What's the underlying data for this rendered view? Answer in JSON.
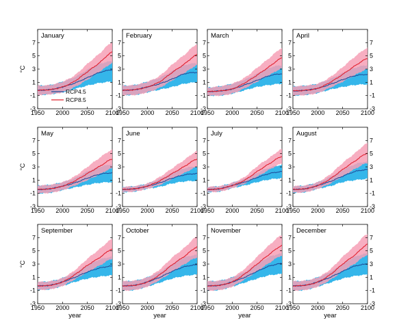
{
  "units_label": "°C",
  "xlabel": "year",
  "legend": [
    {
      "name": "RCP4.5",
      "color": "#1f4e9c"
    },
    {
      "name": "RCP8.5",
      "color": "#e0202f"
    }
  ],
  "colors": {
    "rcp45_line": "#1f4e9c",
    "rcp45_band": "#35b6ea",
    "rcp85_line": "#e0202f",
    "rcp85_band": "#f6a0b6"
  },
  "chart_data": [
    {
      "type": "line",
      "title": "January",
      "xlim": [
        1950,
        2100
      ],
      "ylim": [
        -3,
        9
      ],
      "xticks": [
        1950,
        2000,
        2050,
        2100
      ],
      "yticks": [
        -3,
        -1,
        1,
        3,
        5,
        7
      ],
      "x": [
        1950,
        1975,
        2000,
        2025,
        2050,
        2075,
        2100
      ],
      "series": [
        {
          "name": "RCP4.5",
          "values": [
            -0.2,
            -0.1,
            0.3,
            0.9,
            1.7,
            2.5,
            2.9
          ],
          "lower": [
            -0.9,
            -0.8,
            -0.5,
            0.0,
            0.5,
            0.9,
            1.1
          ],
          "upper": [
            0.5,
            0.6,
            1.1,
            1.8,
            2.9,
            3.8,
            4.2
          ]
        },
        {
          "name": "RCP8.5",
          "values": [
            -0.2,
            -0.1,
            0.3,
            1.2,
            2.6,
            4.0,
            5.6
          ],
          "lower": [
            -0.9,
            -0.8,
            -0.5,
            0.3,
            1.4,
            2.6,
            3.9
          ],
          "upper": [
            0.5,
            0.6,
            1.1,
            2.1,
            3.8,
            5.4,
            7.1
          ]
        }
      ]
    },
    {
      "type": "line",
      "title": "February",
      "xlim": [
        1950,
        2100
      ],
      "ylim": [
        -3,
        9
      ],
      "xticks": [
        1950,
        2000,
        2050,
        2100
      ],
      "yticks": [
        -3,
        -1,
        1,
        3,
        5,
        7
      ],
      "x": [
        1950,
        1975,
        2000,
        2025,
        2050,
        2075,
        2100
      ],
      "series": [
        {
          "name": "RCP4.5",
          "values": [
            -0.2,
            -0.1,
            0.3,
            0.8,
            1.5,
            2.3,
            2.5
          ],
          "lower": [
            -0.9,
            -0.9,
            -0.5,
            -0.1,
            0.3,
            0.8,
            1.0
          ],
          "upper": [
            0.5,
            0.6,
            1.1,
            1.7,
            2.7,
            3.6,
            3.9
          ]
        },
        {
          "name": "RCP8.5",
          "values": [
            -0.2,
            -0.1,
            0.3,
            1.1,
            2.5,
            3.8,
            5.2
          ],
          "lower": [
            -0.9,
            -0.9,
            -0.5,
            0.2,
            1.3,
            2.4,
            3.6
          ],
          "upper": [
            0.5,
            0.6,
            1.1,
            2.0,
            3.7,
            5.2,
            6.8
          ]
        }
      ]
    },
    {
      "type": "line",
      "title": "March",
      "xlim": [
        1950,
        2100
      ],
      "ylim": [
        -3,
        9
      ],
      "xticks": [
        1950,
        2000,
        2050,
        2100
      ],
      "yticks": [
        -3,
        -1,
        1,
        3,
        5,
        7
      ],
      "x": [
        1950,
        1975,
        2000,
        2025,
        2050,
        2075,
        2100
      ],
      "series": [
        {
          "name": "RCP4.5",
          "values": [
            -0.4,
            -0.3,
            0.0,
            0.6,
            1.3,
            2.0,
            2.3
          ],
          "lower": [
            -1.0,
            -1.0,
            -0.7,
            -0.2,
            0.3,
            0.6,
            0.8
          ],
          "upper": [
            0.2,
            0.4,
            0.8,
            1.4,
            2.3,
            3.2,
            3.6
          ]
        },
        {
          "name": "RCP8.5",
          "values": [
            -0.4,
            -0.3,
            0.0,
            0.9,
            2.1,
            3.4,
            4.7
          ],
          "lower": [
            -1.0,
            -1.0,
            -0.7,
            0.1,
            1.1,
            2.1,
            3.1
          ],
          "upper": [
            0.2,
            0.4,
            0.8,
            1.7,
            3.2,
            4.7,
            6.2
          ]
        }
      ]
    },
    {
      "type": "line",
      "title": "April",
      "xlim": [
        1950,
        2100
      ],
      "ylim": [
        -3,
        9
      ],
      "xticks": [
        1950,
        2000,
        2050,
        2100
      ],
      "yticks": [
        -3,
        -1,
        1,
        3,
        5,
        7
      ],
      "x": [
        1950,
        1975,
        2000,
        2025,
        2050,
        2075,
        2100
      ],
      "series": [
        {
          "name": "RCP4.5",
          "values": [
            -0.3,
            -0.2,
            0.1,
            0.7,
            1.4,
            2.0,
            2.2
          ],
          "lower": [
            -1.0,
            -0.9,
            -0.6,
            -0.1,
            0.3,
            0.6,
            0.7
          ],
          "upper": [
            0.4,
            0.5,
            0.8,
            1.5,
            2.4,
            3.2,
            3.6
          ]
        },
        {
          "name": "RCP8.5",
          "values": [
            -0.3,
            -0.2,
            0.1,
            1.0,
            2.2,
            3.5,
            4.6
          ],
          "lower": [
            -1.0,
            -0.9,
            -0.6,
            0.2,
            1.1,
            2.1,
            3.0
          ],
          "upper": [
            0.4,
            0.5,
            0.8,
            1.8,
            3.3,
            4.9,
            6.2
          ]
        }
      ]
    },
    {
      "type": "line",
      "title": "May",
      "xlim": [
        1950,
        2100
      ],
      "ylim": [
        -3,
        9
      ],
      "xticks": [
        1950,
        2000,
        2050,
        2100
      ],
      "yticks": [
        -3,
        -1,
        1,
        3,
        5,
        7
      ],
      "x": [
        1950,
        1975,
        2000,
        2025,
        2050,
        2075,
        2100
      ],
      "series": [
        {
          "name": "RCP4.5",
          "values": [
            -0.4,
            -0.3,
            0.1,
            0.6,
            1.3,
            1.9,
            2.1
          ],
          "lower": [
            -1.0,
            -0.9,
            -0.5,
            -0.1,
            0.3,
            0.6,
            0.7
          ],
          "upper": [
            0.2,
            0.3,
            0.7,
            1.3,
            2.3,
            3.0,
            3.4
          ]
        },
        {
          "name": "RCP8.5",
          "values": [
            -0.4,
            -0.3,
            0.1,
            0.9,
            2.0,
            3.1,
            4.2
          ],
          "lower": [
            -1.0,
            -0.9,
            -0.5,
            0.2,
            1.0,
            1.9,
            2.8
          ],
          "upper": [
            0.2,
            0.3,
            0.7,
            1.6,
            3.0,
            4.4,
            5.6
          ]
        }
      ]
    },
    {
      "type": "line",
      "title": "June",
      "xlim": [
        1950,
        2100
      ],
      "ylim": [
        -3,
        9
      ],
      "xticks": [
        1950,
        2000,
        2050,
        2100
      ],
      "yticks": [
        -3,
        -1,
        1,
        3,
        5,
        7
      ],
      "x": [
        1950,
        1975,
        2000,
        2025,
        2050,
        2075,
        2100
      ],
      "series": [
        {
          "name": "RCP4.5",
          "values": [
            -0.4,
            -0.3,
            0.1,
            0.6,
            1.3,
            1.8,
            2.0
          ],
          "lower": [
            -0.8,
            -0.7,
            -0.3,
            0.0,
            0.5,
            0.8,
            0.9
          ],
          "upper": [
            0.0,
            0.1,
            0.5,
            1.2,
            2.1,
            2.8,
            3.1
          ]
        },
        {
          "name": "RCP8.5",
          "values": [
            -0.4,
            -0.3,
            0.1,
            0.9,
            2.0,
            3.1,
            4.2
          ],
          "lower": [
            -0.8,
            -0.7,
            -0.3,
            0.3,
            1.2,
            2.1,
            3.0
          ],
          "upper": [
            0.0,
            0.1,
            0.5,
            1.5,
            2.8,
            4.1,
            5.4
          ]
        }
      ]
    },
    {
      "type": "line",
      "title": "July",
      "xlim": [
        1950,
        2100
      ],
      "ylim": [
        -3,
        9
      ],
      "xticks": [
        1950,
        2000,
        2050,
        2100
      ],
      "yticks": [
        -3,
        -1,
        1,
        3,
        5,
        7
      ],
      "x": [
        1950,
        1975,
        2000,
        2025,
        2050,
        2075,
        2100
      ],
      "series": [
        {
          "name": "RCP4.5",
          "values": [
            -0.4,
            -0.3,
            0.2,
            0.7,
            1.4,
            2.0,
            2.3
          ],
          "lower": [
            -0.8,
            -0.7,
            -0.2,
            0.2,
            0.7,
            1.1,
            1.3
          ],
          "upper": [
            0.0,
            0.1,
            0.6,
            1.2,
            2.1,
            2.9,
            3.3
          ]
        },
        {
          "name": "RCP8.5",
          "values": [
            -0.4,
            -0.3,
            0.2,
            1.0,
            2.3,
            3.5,
            4.6
          ],
          "lower": [
            -0.8,
            -0.7,
            -0.2,
            0.5,
            1.5,
            2.6,
            3.5
          ],
          "upper": [
            0.0,
            0.1,
            0.6,
            1.5,
            3.1,
            4.4,
            5.7
          ]
        }
      ]
    },
    {
      "type": "line",
      "title": "August",
      "xlim": [
        1950,
        2100
      ],
      "ylim": [
        -3,
        9
      ],
      "xticks": [
        1950,
        2000,
        2050,
        2100
      ],
      "yticks": [
        -3,
        -1,
        1,
        3,
        5,
        7
      ],
      "x": [
        1950,
        1975,
        2000,
        2025,
        2050,
        2075,
        2100
      ],
      "series": [
        {
          "name": "RCP4.5",
          "values": [
            -0.4,
            -0.3,
            0.2,
            0.8,
            1.6,
            2.3,
            2.6
          ],
          "lower": [
            -0.9,
            -0.8,
            -0.3,
            0.1,
            0.7,
            1.0,
            1.2
          ],
          "upper": [
            0.1,
            0.2,
            0.7,
            1.5,
            2.5,
            3.4,
            3.8
          ]
        },
        {
          "name": "RCP8.5",
          "values": [
            -0.4,
            -0.3,
            0.2,
            1.2,
            2.6,
            3.9,
            5.1
          ],
          "lower": [
            -0.9,
            -0.8,
            -0.3,
            0.5,
            1.6,
            2.7,
            3.6
          ],
          "upper": [
            0.1,
            0.2,
            0.7,
            1.9,
            3.6,
            5.1,
            6.6
          ]
        }
      ]
    },
    {
      "type": "line",
      "title": "September",
      "xlim": [
        1950,
        2100
      ],
      "ylim": [
        -3,
        9
      ],
      "xticks": [
        1950,
        2000,
        2050,
        2100
      ],
      "yticks": [
        -3,
        -1,
        1,
        3,
        5,
        7
      ],
      "x": [
        1950,
        1975,
        2000,
        2025,
        2050,
        2075,
        2100
      ],
      "series": [
        {
          "name": "RCP4.5",
          "values": [
            -0.3,
            -0.2,
            0.3,
            1.0,
            1.8,
            2.4,
            2.7
          ],
          "lower": [
            -0.9,
            -0.8,
            -0.3,
            0.3,
            0.8,
            1.1,
            1.3
          ],
          "upper": [
            0.3,
            0.4,
            0.9,
            1.7,
            2.8,
            3.7,
            4.1
          ]
        },
        {
          "name": "RCP8.5",
          "values": [
            -0.3,
            -0.2,
            0.3,
            1.4,
            2.8,
            4.0,
            5.3
          ],
          "lower": [
            -0.9,
            -0.8,
            -0.3,
            0.7,
            1.8,
            2.8,
            3.8
          ],
          "upper": [
            0.3,
            0.4,
            0.9,
            2.1,
            3.8,
            5.3,
            6.8
          ]
        }
      ]
    },
    {
      "type": "line",
      "title": "October",
      "xlim": [
        1950,
        2100
      ],
      "ylim": [
        -3,
        9
      ],
      "xticks": [
        1950,
        2000,
        2050,
        2100
      ],
      "yticks": [
        -3,
        -1,
        1,
        3,
        5,
        7
      ],
      "x": [
        1950,
        1975,
        2000,
        2025,
        2050,
        2075,
        2100
      ],
      "series": [
        {
          "name": "RCP4.5",
          "values": [
            -0.3,
            -0.2,
            0.3,
            1.0,
            1.9,
            2.6,
            2.9
          ],
          "lower": [
            -1.0,
            -0.9,
            -0.4,
            0.2,
            0.8,
            1.2,
            1.4
          ],
          "upper": [
            0.4,
            0.5,
            1.0,
            1.8,
            3.0,
            4.0,
            4.4
          ]
        },
        {
          "name": "RCP8.5",
          "values": [
            -0.3,
            -0.2,
            0.3,
            1.4,
            2.9,
            4.2,
            5.6
          ],
          "lower": [
            -1.0,
            -0.9,
            -0.4,
            0.6,
            1.8,
            3.0,
            4.0
          ],
          "upper": [
            0.4,
            0.5,
            1.0,
            2.2,
            4.0,
            5.5,
            7.2
          ]
        }
      ]
    },
    {
      "type": "line",
      "title": "November",
      "xlim": [
        1950,
        2100
      ],
      "ylim": [
        -3,
        9
      ],
      "xticks": [
        1950,
        2000,
        2050,
        2100
      ],
      "yticks": [
        -3,
        -1,
        1,
        3,
        5,
        7
      ],
      "x": [
        1950,
        1975,
        2000,
        2025,
        2050,
        2075,
        2100
      ],
      "series": [
        {
          "name": "RCP4.5",
          "values": [
            -0.3,
            -0.2,
            0.3,
            1.0,
            1.9,
            2.7,
            3.1
          ],
          "lower": [
            -1.0,
            -0.9,
            -0.4,
            0.2,
            0.8,
            1.3,
            1.5
          ],
          "upper": [
            0.4,
            0.5,
            1.0,
            1.8,
            3.0,
            4.1,
            4.6
          ]
        },
        {
          "name": "RCP8.5",
          "values": [
            -0.3,
            -0.2,
            0.3,
            1.5,
            3.0,
            4.5,
            5.8
          ],
          "lower": [
            -1.0,
            -0.9,
            -0.4,
            0.7,
            1.9,
            3.2,
            4.3
          ],
          "upper": [
            0.4,
            0.5,
            1.0,
            2.3,
            4.1,
            5.9,
            7.4
          ]
        }
      ]
    },
    {
      "type": "line",
      "title": "December",
      "xlim": [
        1950,
        2100
      ],
      "ylim": [
        -3,
        9
      ],
      "xticks": [
        1950,
        2000,
        2050,
        2100
      ],
      "yticks": [
        -3,
        -1,
        1,
        3,
        5,
        7
      ],
      "x": [
        1950,
        1975,
        2000,
        2025,
        2050,
        2075,
        2100
      ],
      "series": [
        {
          "name": "RCP4.5",
          "values": [
            -0.3,
            -0.2,
            0.3,
            1.0,
            1.9,
            2.7,
            3.0
          ],
          "lower": [
            -1.0,
            -0.9,
            -0.4,
            0.2,
            0.8,
            1.2,
            1.4
          ],
          "upper": [
            0.4,
            0.5,
            1.0,
            1.8,
            3.0,
            4.1,
            4.6
          ]
        },
        {
          "name": "RCP8.5",
          "values": [
            -0.3,
            -0.2,
            0.3,
            1.4,
            3.0,
            4.4,
            6.0
          ],
          "lower": [
            -1.0,
            -0.9,
            -0.4,
            0.6,
            1.9,
            3.1,
            4.4
          ],
          "upper": [
            0.4,
            0.5,
            1.0,
            2.2,
            4.1,
            5.8,
            7.6
          ]
        }
      ]
    }
  ]
}
